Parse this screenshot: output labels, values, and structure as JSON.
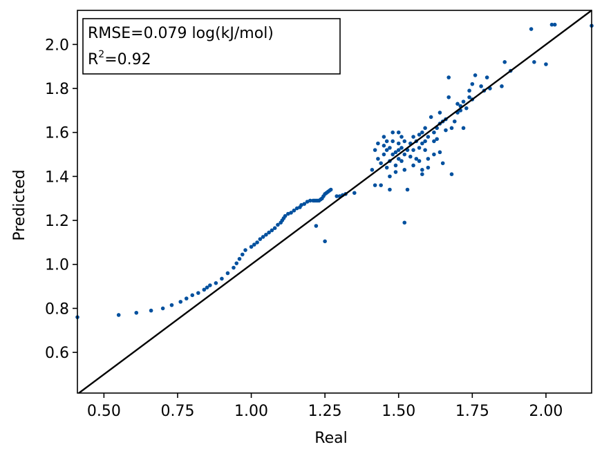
{
  "chart_data": {
    "type": "scatter",
    "title": "",
    "xlabel": "Real",
    "ylabel": "Predicted",
    "xlim": [
      0.41,
      2.155
    ],
    "ylim": [
      0.415,
      2.155
    ],
    "xticks": [
      0.5,
      0.75,
      1.0,
      1.25,
      1.5,
      1.75,
      2.0
    ],
    "xtick_labels": [
      "0.50",
      "0.75",
      "1.00",
      "1.25",
      "1.50",
      "1.75",
      "2.00"
    ],
    "yticks": [
      0.6,
      0.8,
      1.0,
      1.2,
      1.4,
      1.6,
      1.8,
      2.0
    ],
    "ytick_labels": [
      "0.6",
      "0.8",
      "1.0",
      "1.2",
      "1.4",
      "1.6",
      "1.8",
      "2.0"
    ],
    "point_color": "#00509e",
    "line_color": "#000000",
    "reference_line": "y = x",
    "annotation": {
      "rmse_line": "RMSE=0.079 log(kJ/mol)",
      "r2_prefix": "R",
      "r2_sup": "2",
      "r2_value": "=0.92",
      "placement": "top-left"
    },
    "series": [
      {
        "name": "predictions",
        "points": [
          [
            0.41,
            0.76
          ],
          [
            0.55,
            0.77
          ],
          [
            0.61,
            0.78
          ],
          [
            0.66,
            0.79
          ],
          [
            0.7,
            0.8
          ],
          [
            0.73,
            0.815
          ],
          [
            0.76,
            0.83
          ],
          [
            0.78,
            0.845
          ],
          [
            0.8,
            0.86
          ],
          [
            0.82,
            0.87
          ],
          [
            0.84,
            0.885
          ],
          [
            0.85,
            0.895
          ],
          [
            0.86,
            0.905
          ],
          [
            0.88,
            0.915
          ],
          [
            0.9,
            0.935
          ],
          [
            0.92,
            0.96
          ],
          [
            0.94,
            0.985
          ],
          [
            0.95,
            1.005
          ],
          [
            0.96,
            1.025
          ],
          [
            0.97,
            1.045
          ],
          [
            0.98,
            1.065
          ],
          [
            1.0,
            1.08
          ],
          [
            1.01,
            1.09
          ],
          [
            1.02,
            1.1
          ],
          [
            1.03,
            1.115
          ],
          [
            1.04,
            1.125
          ],
          [
            1.05,
            1.135
          ],
          [
            1.06,
            1.145
          ],
          [
            1.07,
            1.155
          ],
          [
            1.08,
            1.165
          ],
          [
            1.09,
            1.18
          ],
          [
            1.1,
            1.19
          ],
          [
            1.105,
            1.2
          ],
          [
            1.11,
            1.21
          ],
          [
            1.115,
            1.22
          ],
          [
            1.125,
            1.23
          ],
          [
            1.135,
            1.235
          ],
          [
            1.145,
            1.245
          ],
          [
            1.155,
            1.255
          ],
          [
            1.165,
            1.26
          ],
          [
            1.17,
            1.27
          ],
          [
            1.18,
            1.275
          ],
          [
            1.19,
            1.285
          ],
          [
            1.2,
            1.29
          ],
          [
            1.21,
            1.29
          ],
          [
            1.215,
            1.29
          ],
          [
            1.22,
            1.29
          ],
          [
            1.225,
            1.29
          ],
          [
            1.23,
            1.29
          ],
          [
            1.235,
            1.295
          ],
          [
            1.24,
            1.3
          ],
          [
            1.245,
            1.31
          ],
          [
            1.25,
            1.32
          ],
          [
            1.255,
            1.325
          ],
          [
            1.26,
            1.33
          ],
          [
            1.265,
            1.335
          ],
          [
            1.27,
            1.34
          ],
          [
            1.29,
            1.31
          ],
          [
            1.3,
            1.31
          ],
          [
            1.31,
            1.315
          ],
          [
            1.32,
            1.32
          ],
          [
            1.35,
            1.325
          ],
          [
            1.22,
            1.175
          ],
          [
            1.25,
            1.105
          ],
          [
            1.41,
            1.43
          ],
          [
            1.42,
            1.52
          ],
          [
            1.42,
            1.36
          ],
          [
            1.43,
            1.48
          ],
          [
            1.43,
            1.55
          ],
          [
            1.44,
            1.36
          ],
          [
            1.44,
            1.46
          ],
          [
            1.45,
            1.5
          ],
          [
            1.45,
            1.54
          ],
          [
            1.45,
            1.58
          ],
          [
            1.46,
            1.44
          ],
          [
            1.46,
            1.52
          ],
          [
            1.46,
            1.56
          ],
          [
            1.47,
            1.47
          ],
          [
            1.47,
            1.53
          ],
          [
            1.47,
            1.4
          ],
          [
            1.47,
            1.34
          ],
          [
            1.48,
            1.5
          ],
          [
            1.48,
            1.56
          ],
          [
            1.48,
            1.6
          ],
          [
            1.49,
            1.45
          ],
          [
            1.49,
            1.51
          ],
          [
            1.49,
            1.42
          ],
          [
            1.5,
            1.48
          ],
          [
            1.5,
            1.52
          ],
          [
            1.5,
            1.55
          ],
          [
            1.5,
            1.6
          ],
          [
            1.51,
            1.47
          ],
          [
            1.51,
            1.53
          ],
          [
            1.51,
            1.58
          ],
          [
            1.52,
            1.5
          ],
          [
            1.52,
            1.56
          ],
          [
            1.52,
            1.43
          ],
          [
            1.52,
            1.19
          ],
          [
            1.53,
            1.52
          ],
          [
            1.53,
            1.34
          ],
          [
            1.54,
            1.55
          ],
          [
            1.54,
            1.49
          ],
          [
            1.55,
            1.58
          ],
          [
            1.55,
            1.52
          ],
          [
            1.55,
            1.45
          ],
          [
            1.56,
            1.56
          ],
          [
            1.56,
            1.48
          ],
          [
            1.57,
            1.59
          ],
          [
            1.57,
            1.53
          ],
          [
            1.57,
            1.47
          ],
          [
            1.58,
            1.6
          ],
          [
            1.58,
            1.55
          ],
          [
            1.58,
            1.43
          ],
          [
            1.58,
            1.41
          ],
          [
            1.59,
            1.62
          ],
          [
            1.59,
            1.56
          ],
          [
            1.59,
            1.52
          ],
          [
            1.6,
            1.58
          ],
          [
            1.6,
            1.48
          ],
          [
            1.6,
            1.44
          ],
          [
            1.61,
            1.67
          ],
          [
            1.62,
            1.6
          ],
          [
            1.62,
            1.56
          ],
          [
            1.62,
            1.5
          ],
          [
            1.63,
            1.62
          ],
          [
            1.63,
            1.57
          ],
          [
            1.64,
            1.69
          ],
          [
            1.64,
            1.64
          ],
          [
            1.64,
            1.51
          ],
          [
            1.65,
            1.65
          ],
          [
            1.65,
            1.46
          ],
          [
            1.66,
            1.61
          ],
          [
            1.66,
            1.66
          ],
          [
            1.67,
            1.85
          ],
          [
            1.67,
            1.76
          ],
          [
            1.68,
            1.62
          ],
          [
            1.68,
            1.41
          ],
          [
            1.69,
            1.65
          ],
          [
            1.7,
            1.73
          ],
          [
            1.7,
            1.69
          ],
          [
            1.71,
            1.7
          ],
          [
            1.71,
            1.72
          ],
          [
            1.72,
            1.74
          ],
          [
            1.72,
            1.62
          ],
          [
            1.73,
            1.71
          ],
          [
            1.74,
            1.76
          ],
          [
            1.74,
            1.79
          ],
          [
            1.75,
            1.75
          ],
          [
            1.75,
            1.82
          ],
          [
            1.76,
            1.86
          ],
          [
            1.78,
            1.81
          ],
          [
            1.79,
            1.79
          ],
          [
            1.8,
            1.85
          ],
          [
            1.81,
            1.8
          ],
          [
            1.85,
            1.81
          ],
          [
            1.86,
            1.92
          ],
          [
            1.88,
            1.88
          ],
          [
            1.95,
            2.07
          ],
          [
            1.96,
            1.92
          ],
          [
            2.0,
            1.91
          ],
          [
            2.02,
            2.09
          ],
          [
            2.03,
            2.09
          ],
          [
            2.155,
            2.085
          ]
        ]
      }
    ]
  }
}
